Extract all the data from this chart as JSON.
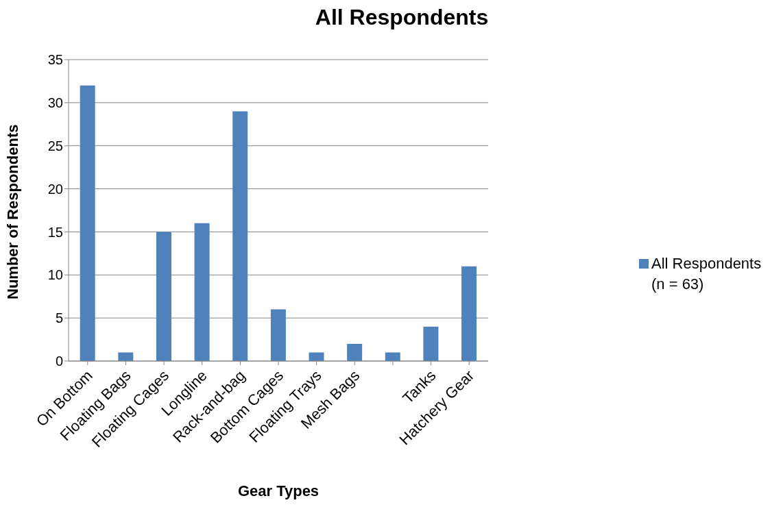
{
  "chart_data": {
    "type": "bar",
    "title": "All Respondents",
    "xlabel": "Gear Types",
    "ylabel": "Number of Respondents",
    "categories": [
      "On Bottom",
      "Floating Bags",
      "Floating Cages",
      "Longline",
      "Rack-and-bag",
      "Bottom Cages",
      "Floating Trays",
      "Mesh Bags",
      null,
      "Tanks",
      "Hatchery Gear"
    ],
    "series": [
      {
        "name": "All Respondents (n = 63)",
        "color": "#4f81bd",
        "values": [
          32,
          1,
          15,
          16,
          29,
          6,
          1,
          2,
          1,
          4,
          11
        ]
      }
    ],
    "ylim": [
      0,
      35
    ],
    "yticks": [
      0,
      5,
      10,
      15,
      20,
      25,
      30,
      35
    ],
    "grid": "y",
    "legend": "right"
  }
}
